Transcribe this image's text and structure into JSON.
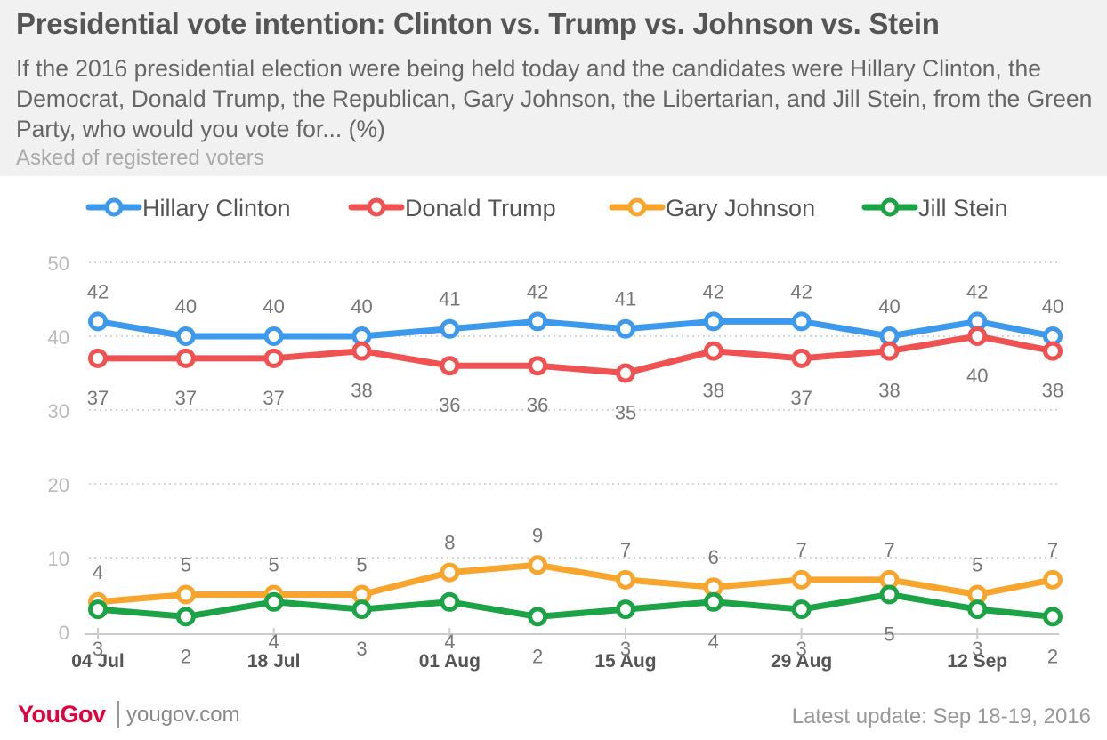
{
  "header": {
    "title": "Presidential vote intention: Clinton vs. Trump vs. Johnson vs. Stein",
    "subtitle": "If the 2016 presidential election were being held today and the candidates were Hillary Clinton, the Democrat, Donald Trump, the Republican, Gary Johnson, the Libertarian, and Jill Stein, from the Green Party, who would you vote for... (%)",
    "note": "Asked of registered voters"
  },
  "footer": {
    "logo": "YouGov",
    "site": "yougov.com",
    "update": "Latest update: Sep 18-19, 2016"
  },
  "chart_data": {
    "type": "line",
    "x": [
      "2016-07-04",
      "2016-07-11",
      "2016-07-18",
      "2016-07-25",
      "2016-08-01",
      "2016-08-08",
      "2016-08-15",
      "2016-08-22",
      "2016-08-29",
      "2016-09-05",
      "2016-09-12",
      "2016-09-18"
    ],
    "x_tick_labels": [
      {
        "date": "2016-07-04",
        "label": "04 Jul"
      },
      {
        "date": "2016-07-18",
        "label": "18 Jul"
      },
      {
        "date": "2016-08-01",
        "label": "01 Aug"
      },
      {
        "date": "2016-08-15",
        "label": "15 Aug"
      },
      {
        "date": "2016-08-29",
        "label": "29 Aug"
      },
      {
        "date": "2016-09-12",
        "label": "12 Sep"
      }
    ],
    "ylim": [
      0,
      50
    ],
    "y_ticks": [
      0,
      10,
      20,
      30,
      40,
      50
    ],
    "grid": true,
    "legend_position": "top",
    "series": [
      {
        "name": "Hillary Clinton",
        "color": "#3d99ec",
        "label_position": "above",
        "values": [
          42,
          40,
          40,
          40,
          41,
          42,
          41,
          42,
          42,
          40,
          42,
          40
        ]
      },
      {
        "name": "Donald Trump",
        "color": "#f05151",
        "label_position": "below",
        "values": [
          37,
          37,
          37,
          38,
          36,
          36,
          35,
          38,
          37,
          38,
          40,
          38
        ]
      },
      {
        "name": "Gary Johnson",
        "color": "#f8a52e",
        "label_position": "above",
        "values": [
          4,
          5,
          5,
          5,
          8,
          9,
          7,
          6,
          7,
          7,
          5,
          7
        ]
      },
      {
        "name": "Jill Stein",
        "color": "#1ba345",
        "label_position": "below",
        "values": [
          3,
          2,
          4,
          3,
          4,
          2,
          3,
          4,
          3,
          5,
          3,
          2
        ]
      }
    ]
  }
}
